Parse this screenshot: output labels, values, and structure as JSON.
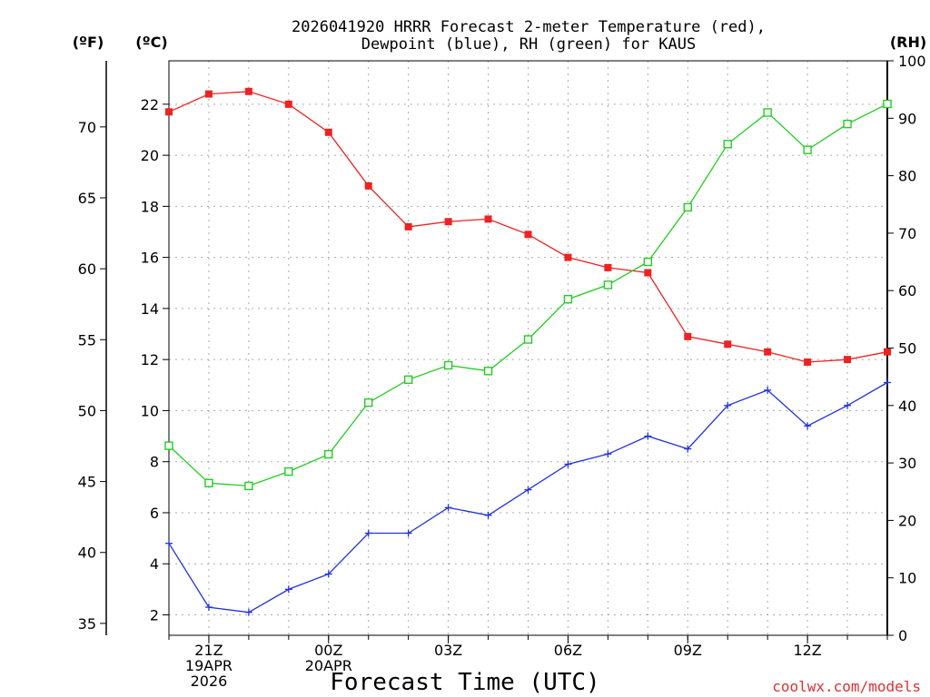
{
  "chart_data": {
    "type": "line",
    "title_line1": "2026041920 HRRR Forecast 2-meter Temperature (red),",
    "title_line2": "Dewpoint (blue), RH (green) for KAUS",
    "units": {
      "fahrenheit": "(ºF)",
      "celsius": "(ºC)",
      "rh": "(RH)"
    },
    "xlabel": "Forecast Time (UTC)",
    "credit": "coolwx.com/models",
    "x_hours": [
      0,
      1,
      2,
      3,
      4,
      5,
      6,
      7,
      8,
      9,
      10,
      11,
      12,
      13,
      14,
      15,
      16,
      17,
      18
    ],
    "x_ticks": [
      {
        "hour": 1,
        "lines": [
          "21Z",
          "19APR",
          "2026"
        ]
      },
      {
        "hour": 4,
        "lines": [
          "00Z",
          "20APR"
        ]
      },
      {
        "hour": 7,
        "lines": [
          "03Z"
        ]
      },
      {
        "hour": 10,
        "lines": [
          "06Z"
        ]
      },
      {
        "hour": 13,
        "lines": [
          "09Z"
        ]
      },
      {
        "hour": 16,
        "lines": [
          "12Z"
        ]
      }
    ],
    "celsius_axis": {
      "range": [
        1.2,
        23.7
      ],
      "ticks": [
        2,
        4,
        6,
        8,
        10,
        12,
        14,
        16,
        18,
        20,
        22
      ]
    },
    "fahrenheit_axis": {
      "ticks": [
        35,
        40,
        45,
        50,
        55,
        60,
        65,
        70
      ]
    },
    "rh_axis": {
      "range": [
        0,
        100
      ],
      "ticks": [
        0,
        10,
        20,
        30,
        40,
        50,
        60,
        70,
        80,
        90,
        100
      ]
    },
    "series": [
      {
        "name": "Temperature",
        "unit": "C",
        "color": "#ee2222",
        "marker": "filled-square",
        "values": [
          21.7,
          22.4,
          22.5,
          22.0,
          20.9,
          18.8,
          17.2,
          17.4,
          17.5,
          16.9,
          16.0,
          15.6,
          15.4,
          12.9,
          12.6,
          12.3,
          11.9,
          12.0,
          12.3
        ]
      },
      {
        "name": "Dewpoint",
        "unit": "C",
        "color": "#2233dd",
        "marker": "plus",
        "values": [
          4.8,
          2.3,
          2.1,
          3.0,
          3.6,
          5.2,
          5.2,
          6.2,
          5.9,
          6.9,
          7.9,
          8.3,
          9.0,
          8.5,
          10.2,
          10.8,
          9.4,
          10.2,
          11.1
        ]
      },
      {
        "name": "RH",
        "unit": "%",
        "color": "#22cc22",
        "marker": "open-square",
        "values": [
          33,
          26.5,
          26,
          28.5,
          31.5,
          40.5,
          44.5,
          47,
          46,
          51.5,
          58.5,
          61,
          65,
          74.5,
          85.5,
          91,
          84.5,
          89,
          92.5
        ]
      }
    ]
  }
}
